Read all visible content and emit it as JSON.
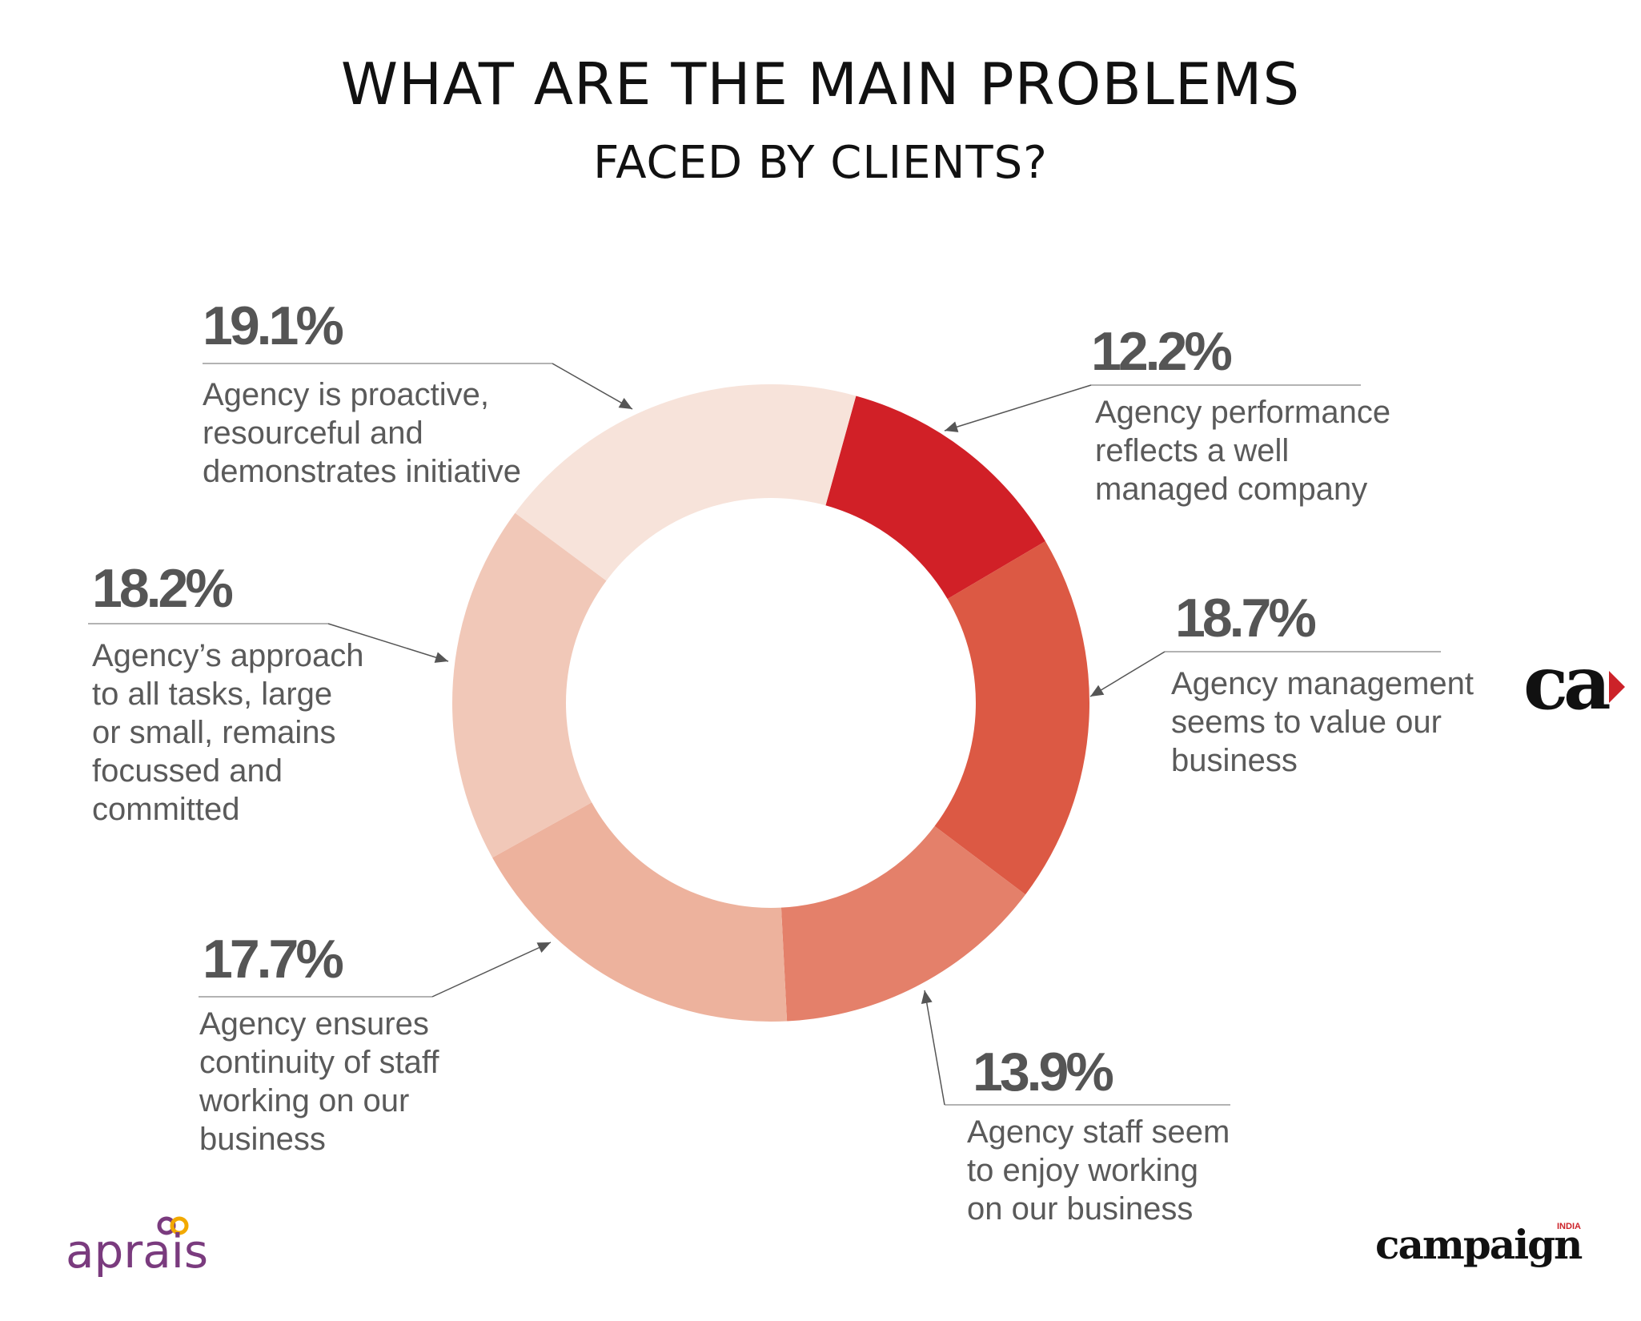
{
  "chart_data": {
    "type": "pie",
    "title": "WHAT ARE THE MAIN PROBLEMS",
    "subtitle": "FACED BY CLIENTS?",
    "slices": [
      {
        "label": [
          "Agency performance",
          "reflects a well",
          "managed company"
        ],
        "value": 12.2,
        "value_label": "12.2%",
        "color": "#d12027"
      },
      {
        "label": [
          "Agency management",
          "seems to value our",
          "business"
        ],
        "value": 18.7,
        "value_label": "18.7%",
        "color": "#dc5944"
      },
      {
        "label": [
          "Agency staff seem",
          "to enjoy working",
          "on our business"
        ],
        "value": 13.9,
        "value_label": "13.9%",
        "color": "#e4806a"
      },
      {
        "label": [
          "Agency ensures",
          "continuity of staff",
          "working on our",
          "business"
        ],
        "value": 17.7,
        "value_label": "17.7%",
        "color": "#edb29d"
      },
      {
        "label": [
          "Agency’s approach",
          "to all tasks, large",
          "or small, remains",
          "focussed and",
          "committed"
        ],
        "value": 18.2,
        "value_label": "18.2%",
        "color": "#f1c8b8"
      },
      {
        "label": [
          "Agency is proactive,",
          "resourceful and",
          "demonstrates initiative"
        ],
        "value": 19.1,
        "value_label": "19.1%",
        "color": "#f7e3da"
      }
    ]
  },
  "brands": {
    "aprais": "aprais",
    "campaign": "campaign",
    "campaign_region": "INDIA",
    "ca_logo": "ca"
  }
}
